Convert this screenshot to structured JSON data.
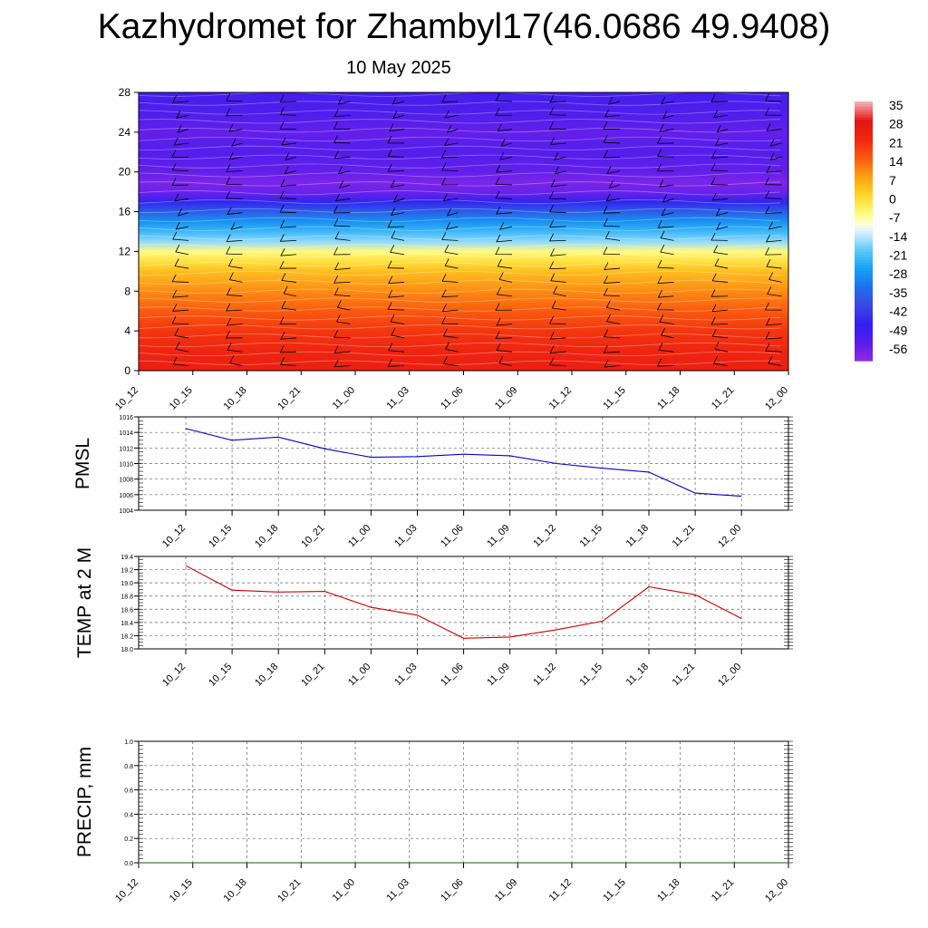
{
  "title": "Kazhydromet for Zhambyl17(46.0686 49.9408)",
  "date": "10 May 2025",
  "time_labels": [
    "10_12",
    "10_15",
    "10_18",
    "10_21",
    "11_00",
    "11_03",
    "11_06",
    "11_09",
    "11_12",
    "11_15",
    "11_18",
    "11_21",
    "12_00"
  ],
  "chart_data": [
    {
      "type": "heatmap",
      "name": "temperature-cross-section",
      "x": [
        "10_12",
        "10_15",
        "10_18",
        "10_21",
        "11_00",
        "11_03",
        "11_06",
        "11_09",
        "11_12",
        "11_15",
        "11_18",
        "11_21",
        "12_00"
      ],
      "ylim": [
        0,
        28
      ],
      "yticks": [
        0,
        4,
        8,
        12,
        16,
        20,
        24,
        28
      ],
      "colorbar": {
        "ticks": [
          35,
          28,
          21,
          14,
          7,
          0,
          -7,
          -14,
          -21,
          -28,
          -35,
          -42,
          -49,
          -56
        ],
        "min": -63,
        "max": 35
      },
      "profile": {
        "heights": [
          0,
          2,
          4,
          6,
          8,
          10,
          11,
          12,
          13,
          14,
          15,
          16,
          17,
          18,
          19,
          20,
          22,
          24,
          26,
          28
        ],
        "values": [
          24,
          22,
          19,
          14,
          9,
          3,
          -2,
          -7,
          -18,
          -24,
          -30,
          -38,
          -48,
          -58,
          -60,
          -57,
          -55,
          -57,
          -54,
          -52
        ]
      }
    },
    {
      "type": "line",
      "name": "pmsl",
      "ylabel": "PMSL",
      "x": [
        "10_12",
        "10_15",
        "10_18",
        "10_21",
        "11_00",
        "11_03",
        "11_06",
        "11_09",
        "11_12",
        "11_15",
        "11_18",
        "11_21",
        "12_00"
      ],
      "ylim": [
        1004,
        1016
      ],
      "yticks": [
        1004,
        1006,
        1008,
        1010,
        1012,
        1014,
        1016
      ],
      "series": [
        {
          "values": [
            1014.5,
            1013.0,
            1013.4,
            1011.9,
            1010.8,
            1010.9,
            1011.2,
            1011.0,
            1010.0,
            1009.4,
            1008.9,
            1006.2,
            1005.8
          ]
        }
      ],
      "color": "#0000cc",
      "grid": true
    },
    {
      "type": "line",
      "name": "temp-2m",
      "ylabel": "TEMP at 2 M",
      "x": [
        "10_12",
        "10_15",
        "10_18",
        "10_21",
        "11_00",
        "11_03",
        "11_06",
        "11_09",
        "11_12",
        "11_15",
        "11_18",
        "11_21",
        "12_00"
      ],
      "ylim": [
        18.0,
        19.4
      ],
      "yticks": [
        18.0,
        18.2,
        18.4,
        18.6,
        18.8,
        19.0,
        19.2,
        19.4
      ],
      "series": [
        {
          "values": [
            19.26,
            18.89,
            18.86,
            18.87,
            18.63,
            18.51,
            18.16,
            18.18,
            18.29,
            18.42,
            18.94,
            18.82,
            18.46
          ]
        }
      ],
      "color": "#cc0000",
      "grid": true
    },
    {
      "type": "line",
      "name": "precip",
      "ylabel": "PRECIP, mm",
      "x": [
        "10_12",
        "10_15",
        "10_18",
        "10_21",
        "11_00",
        "11_03",
        "11_06",
        "11_09",
        "11_12",
        "11_15",
        "11_18",
        "11_21",
        "12_00"
      ],
      "ylim": [
        0.0,
        1.0
      ],
      "yticks": [
        0.0,
        0.2,
        0.4,
        0.6,
        0.8,
        1.0
      ],
      "series": [
        {
          "values": [
            0,
            0,
            0,
            0,
            0,
            0,
            0,
            0,
            0,
            0,
            0,
            0,
            0
          ]
        }
      ],
      "color": "#006600",
      "grid": true
    }
  ]
}
